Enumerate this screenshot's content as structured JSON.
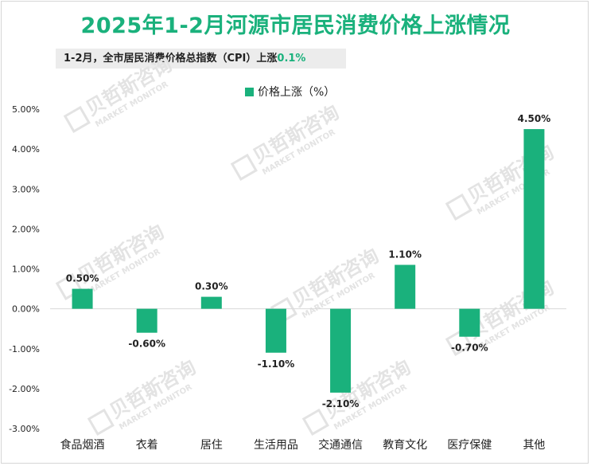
{
  "header": {
    "title": "2025年1-2月河源市居民消费价格上涨情况",
    "subtitle_prefix": "1-2月，全市居民消费价格总指数（CPI）上涨",
    "subtitle_value": "0.1%"
  },
  "watermark": {
    "cn": "贝哲斯咨询",
    "en": "MARKET MONITOR"
  },
  "colors": {
    "bar": "#1ab17c",
    "title": "#1ab17c",
    "watermark": "#e3e3e3"
  },
  "chart_data": {
    "type": "bar",
    "title": "2025年1-2月河源市居民消费价格上涨情况",
    "xlabel": "",
    "ylabel": "",
    "categories": [
      "食品烟酒",
      "衣着",
      "居住",
      "生活用品",
      "交通通信",
      "教育文化",
      "医疗保健",
      "其他"
    ],
    "series": [
      {
        "name": "价格上涨（%）",
        "values": [
          0.5,
          -0.6,
          0.3,
          -1.1,
          -2.1,
          1.1,
          -0.7,
          4.5
        ],
        "labels": [
          "0.50%",
          "-0.60%",
          "0.30%",
          "-1.10%",
          "-2.10%",
          "1.10%",
          "-0.70%",
          "4.50%"
        ]
      }
    ],
    "ylim": [
      -3,
      5
    ],
    "yticks": [
      "5.00%",
      "4.00%",
      "3.00%",
      "2.00%",
      "1.00%",
      "0.00%",
      "-1.00%",
      "-2.00%",
      "-3.00%"
    ],
    "grid": false,
    "legend": "top-center"
  }
}
